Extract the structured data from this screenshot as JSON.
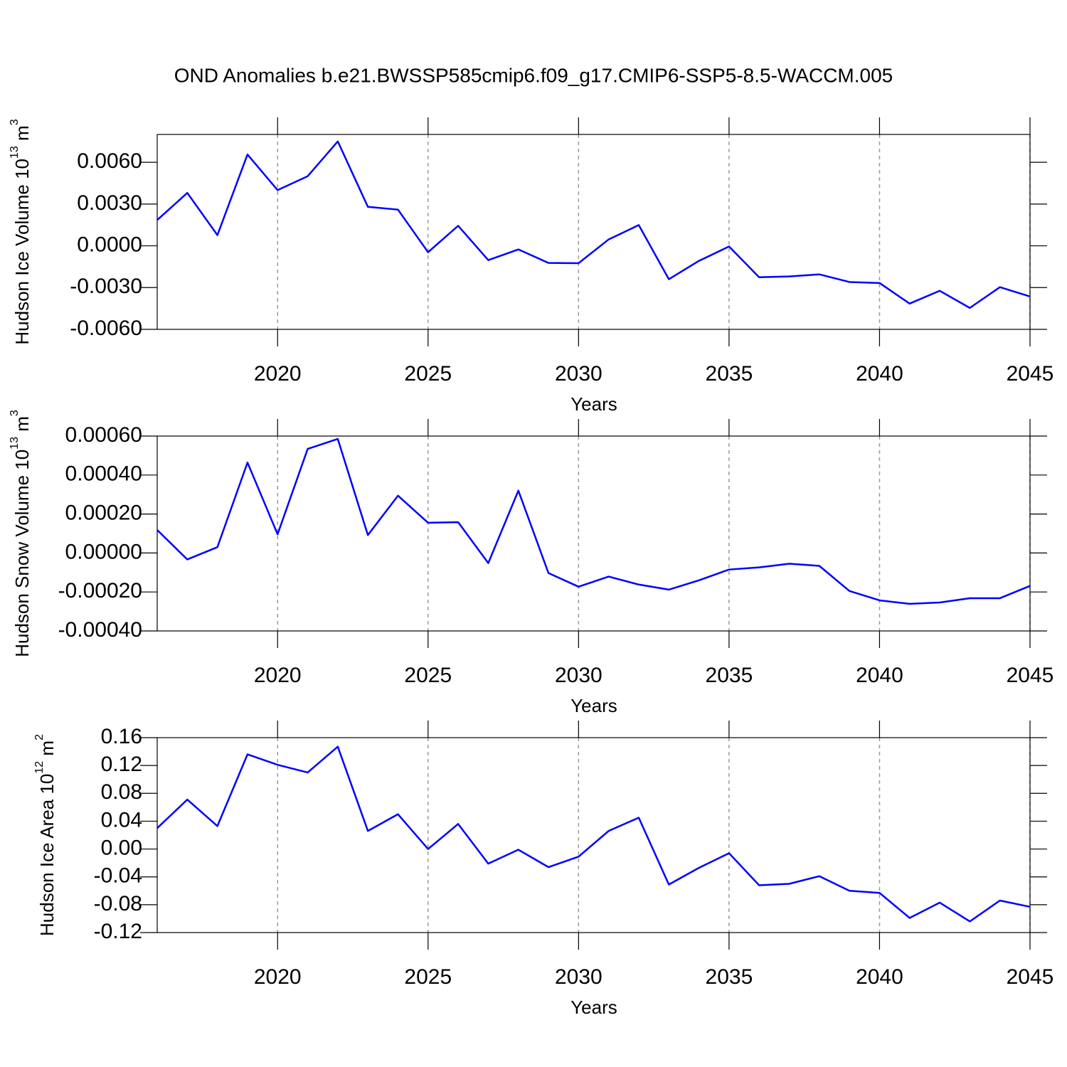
{
  "chart_data": [
    {
      "type": "line",
      "title": "OND Anomalies b.e21.BWSSP585cmip6.f09_g17.CMIP6-SSP5-8.5-WACCM.005",
      "xlabel": "Years",
      "ylabel": [
        "Hudson Ice Volume 10",
        "13",
        " m",
        "3"
      ],
      "x": [
        2016,
        2017,
        2018,
        2019,
        2020,
        2021,
        2022,
        2023,
        2024,
        2025,
        2026,
        2027,
        2028,
        2029,
        2030,
        2031,
        2032,
        2033,
        2034,
        2035,
        2036,
        2037,
        2038,
        2039,
        2040,
        2041,
        2042,
        2043,
        2044,
        2045
      ],
      "series": [
        {
          "color": "#0000ff",
          "values": [
            0.00185,
            0.0038,
            0.00077,
            0.00656,
            0.004,
            0.005,
            0.0075,
            0.0028,
            0.0026,
            -0.00046,
            0.00144,
            -0.00103,
            -0.00026,
            -0.00123,
            -0.00125,
            0.00046,
            0.00149,
            -0.0024,
            -0.00108,
            -5e-05,
            -0.00226,
            -0.0022,
            -0.00205,
            -0.0026,
            -0.00267,
            -0.00415,
            -0.00323,
            -0.00446,
            -0.00297,
            -0.00364
          ]
        }
      ],
      "xlim": [
        2016,
        2045
      ],
      "xticks": [
        2020,
        2025,
        2030,
        2035,
        2040,
        2045
      ],
      "ylim": [
        -0.006,
        0.008
      ],
      "yticks": [
        {
          "value": -0.006,
          "label": "-0.0060"
        },
        {
          "value": -0.003,
          "label": "-0.0030"
        },
        {
          "value": 0,
          "label": "0.0000"
        },
        {
          "value": 0.003,
          "label": "0.0030"
        },
        {
          "value": 0.006,
          "label": "0.0060"
        }
      ],
      "xgrid": true
    },
    {
      "type": "line",
      "xlabel": "Years",
      "ylabel": [
        "Hudson Snow Volume 10",
        "13",
        " m",
        "3"
      ],
      "x": [
        2016,
        2017,
        2018,
        2019,
        2020,
        2021,
        2022,
        2023,
        2024,
        2025,
        2026,
        2027,
        2028,
        2029,
        2030,
        2031,
        2032,
        2033,
        2034,
        2035,
        2036,
        2037,
        2038,
        2039,
        2040,
        2041,
        2042,
        2043,
        2044,
        2045
      ],
      "series": [
        {
          "color": "#0000ff",
          "values": [
            0.000118,
            -3.3e-05,
            3e-05,
            0.000464,
            9.6e-05,
            0.000534,
            0.000585,
            9.2e-05,
            0.000294,
            0.000155,
            0.000158,
            -5.2e-05,
            0.00032,
            -0.000103,
            -0.000173,
            -0.000121,
            -0.000162,
            -0.000188,
            -0.00014,
            -8.5e-05,
            -7.4e-05,
            -5.5e-05,
            -6.6e-05,
            -0.000195,
            -0.000243,
            -0.000261,
            -0.000254,
            -0.000232,
            -0.000232,
            -0.000169
          ]
        }
      ],
      "xlim": [
        2016,
        2045
      ],
      "xticks": [
        2020,
        2025,
        2030,
        2035,
        2040,
        2045
      ],
      "ylim": [
        -0.0004,
        0.0006
      ],
      "yticks": [
        {
          "value": -0.0004,
          "label": "-0.00040"
        },
        {
          "value": -0.0002,
          "label": "-0.00020"
        },
        {
          "value": 0,
          "label": "0.00000"
        },
        {
          "value": 0.0002,
          "label": "0.00020"
        },
        {
          "value": 0.0004,
          "label": "0.00040"
        },
        {
          "value": 0.0006,
          "label": "0.00060"
        }
      ],
      "xgrid": true
    },
    {
      "type": "line",
      "xlabel": "Years",
      "ylabel": [
        "Hudson Ice Area 10",
        "12",
        " m",
        "2"
      ],
      "x": [
        2016,
        2017,
        2018,
        2019,
        2020,
        2021,
        2022,
        2023,
        2024,
        2025,
        2026,
        2027,
        2028,
        2029,
        2030,
        2031,
        2032,
        2033,
        2034,
        2035,
        2036,
        2037,
        2038,
        2039,
        2040,
        2041,
        2042,
        2043,
        2044,
        2045
      ],
      "series": [
        {
          "color": "#0000ff",
          "values": [
            0.03,
            0.071,
            0.033,
            0.136,
            0.121,
            0.11,
            0.147,
            0.026,
            0.05,
            0,
            0.036,
            -0.021,
            -0.001,
            -0.026,
            -0.011,
            0.026,
            0.045,
            -0.051,
            -0.027,
            -0.006,
            -0.052,
            -0.05,
            -0.039,
            -0.06,
            -0.063,
            -0.099,
            -0.077,
            -0.104,
            -0.074,
            -0.083
          ]
        }
      ],
      "xlim": [
        2016,
        2045
      ],
      "xticks": [
        2020,
        2025,
        2030,
        2035,
        2040,
        2045
      ],
      "ylim": [
        -0.12,
        0.16
      ],
      "yticks": [
        {
          "value": -0.12,
          "label": "-0.12"
        },
        {
          "value": -0.08,
          "label": "-0.08"
        },
        {
          "value": -0.04,
          "label": "-0.04"
        },
        {
          "value": 0,
          "label": "0.00"
        },
        {
          "value": 0.04,
          "label": "0.04"
        },
        {
          "value": 0.08,
          "label": "0.08"
        },
        {
          "value": 0.12,
          "label": "0.12"
        },
        {
          "value": 0.16,
          "label": "0.16"
        }
      ],
      "xgrid": true
    }
  ]
}
